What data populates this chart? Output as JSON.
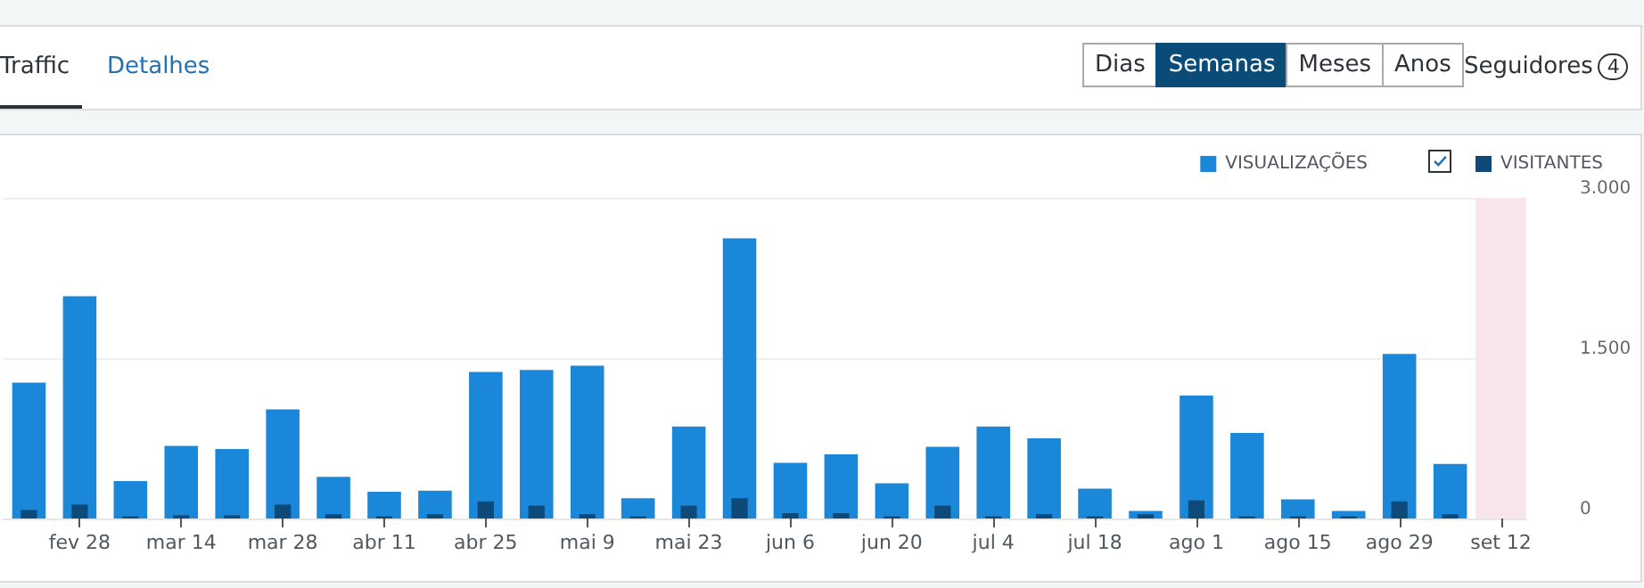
{
  "chart_data": {
    "type": "bar",
    "categories": [
      null,
      "fev 28",
      null,
      "mar 14",
      null,
      "mar 28",
      null,
      "abr 11",
      null,
      "abr 25",
      null,
      "mai 9",
      null,
      "mai 23",
      null,
      "jun 6",
      null,
      "jun 20",
      null,
      "jul 4",
      null,
      "jul 18",
      null,
      "ago 1",
      null,
      "ago 15",
      null,
      "ago 29",
      null,
      "set 12"
    ],
    "series": [
      {
        "name": "VISUALIZAÇÕES",
        "color": "#1a87d8",
        "values": [
          1270,
          2080,
          350,
          680,
          650,
          1020,
          390,
          250,
          260,
          1370,
          1390,
          1430,
          190,
          860,
          2620,
          520,
          600,
          330,
          670,
          860,
          750,
          280,
          70,
          1150,
          800,
          180,
          70,
          1540,
          510,
          null
        ]
      },
      {
        "name": "VISITANTES",
        "color": "#0d4a7a",
        "values": [
          80,
          130,
          20,
          30,
          30,
          130,
          40,
          20,
          40,
          160,
          120,
          40,
          20,
          120,
          190,
          50,
          50,
          20,
          120,
          20,
          40,
          20,
          40,
          170,
          20,
          20,
          20,
          160,
          40,
          null
        ]
      }
    ],
    "ylim": [
      0,
      3000
    ],
    "yticks": [
      {
        "value": 0,
        "label": "0"
      },
      {
        "value": 1500,
        "label": "1.500"
      },
      {
        "value": 3000,
        "label": "3.000"
      }
    ],
    "grid": "y",
    "legend": "top right",
    "bands": [
      {
        "axis": "x",
        "from": "set 12",
        "to": "set 12",
        "color": "#f9e6ea"
      }
    ],
    "annotations": [
      "Traffic",
      "Detalhes",
      "Dias",
      "Semanas",
      "Meses",
      "Anos",
      "Seguidores",
      "4"
    ]
  }
}
